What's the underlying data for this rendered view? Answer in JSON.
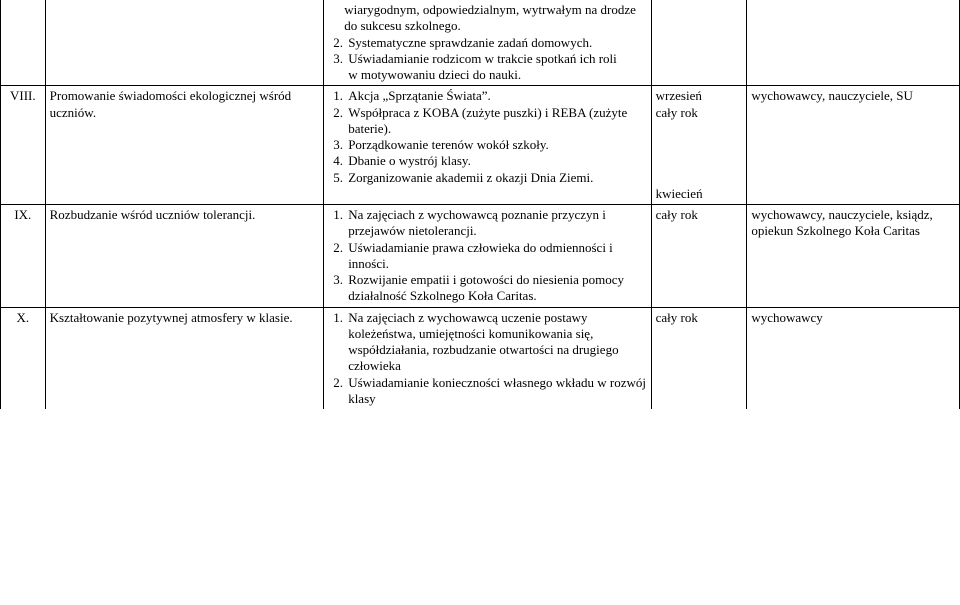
{
  "rows": [
    {
      "num": "",
      "topic": "",
      "tasks": {
        "pre": [
          "wiarygodnym, odpowiedzialnym, wytrwałym na drodze do sukcesu szkolnego."
        ],
        "start": 2,
        "items": [
          "Systematyczne sprawdzanie zadań domowych.",
          "Uświadamianie rodzicom w trakcie spotkań ich roli w motywowaniu dzieci do nauki."
        ]
      },
      "term": "",
      "resp": ""
    },
    {
      "num": "VIII.",
      "topic": "Promowanie świadomości ekologicznej wśród uczniów.",
      "tasks": {
        "start": 1,
        "items": [
          "Akcja „Sprzątanie Świata”.",
          "Współpraca z KOBA (zużyte puszki) i REBA (zużyte baterie).",
          "Porządkowanie terenów wokół szkoły.",
          "Dbanie o wystrój klasy.",
          "Zorganizowanie akademii z okazji Dnia Ziemi."
        ]
      },
      "term_lines": [
        "wrzesień",
        "cały rok",
        "",
        "",
        "kwiecień"
      ],
      "resp": "wychowawcy, nauczyciele, SU"
    },
    {
      "num": "IX.",
      "topic": "Rozbudzanie wśród uczniów tolerancji.",
      "tasks": {
        "start": 1,
        "items": [
          "Na zajęciach z wychowawcą poznanie przyczyn i przejawów nietolerancji.",
          "Uświadamianie prawa człowieka do odmienności i inności.",
          "Rozwijanie empatii i gotowości do niesienia pomocy działalność Szkolnego Koła Caritas."
        ]
      },
      "term": "cały rok",
      "resp": "wychowawcy, nauczyciele, ksiądz, opiekun Szkolnego Koła Caritas"
    },
    {
      "num": "X.",
      "topic": "Kształtowanie pozytywnej atmosfery w klasie.",
      "tasks": {
        "start": 1,
        "items": [
          "Na zajęciach z wychowawcą uczenie postawy koleżeństwa, umiejętności komunikowania się, współdziałania, rozbudzanie otwartości na drugiego człowieka",
          "Uświadamianie konieczności własnego wkładu w rozwój klasy"
        ]
      },
      "term": "cały rok",
      "resp": "wychowawcy"
    }
  ]
}
